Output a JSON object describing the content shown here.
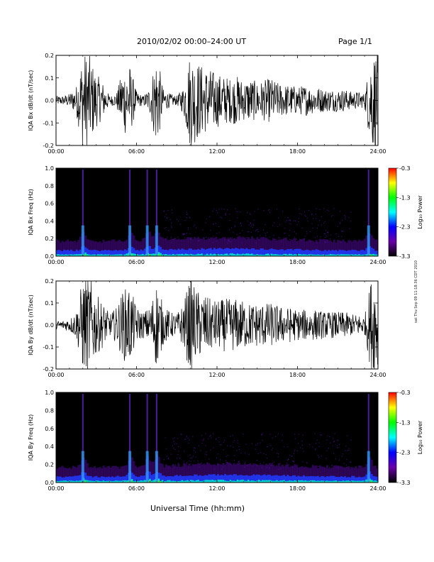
{
  "header": {
    "title": "2010/02/02  00:00–24:00 UT",
    "page": "Page 1/1"
  },
  "footer": {
    "xlabel": "Universal Time (hh:mm)"
  },
  "side_stamp": "sat Thu Sep 09 11:18:36 CDT 2010",
  "colorbar": {
    "label": "Log₁₀ Power",
    "ticks": [
      "-0.3",
      "-1.3",
      "-2.3",
      "-3.3"
    ],
    "colors": [
      "#ff0000",
      "#ffff00",
      "#00ff00",
      "#00ffff",
      "#0000ff",
      "#6a00a8",
      "#000000"
    ]
  },
  "chart_data": [
    {
      "type": "line",
      "ylabel": "IQA Bx dB/dt (nT/sec)",
      "xlim": [
        0,
        24
      ],
      "ylim": [
        -0.2,
        0.2
      ],
      "xticks": [
        "00:00",
        "06:00",
        "12:00",
        "18:00",
        "24:00"
      ],
      "yticks": [
        "0.2",
        "0.1",
        "0.0",
        "-0.1",
        "-0.2"
      ],
      "series": [
        {
          "x": [
            0,
            0.5,
            1,
            1.5,
            2,
            2.5,
            3,
            3.5,
            4,
            4.5,
            5,
            5.5,
            6,
            6.5,
            7,
            7.5,
            8,
            8.5,
            9,
            9.5,
            10,
            10.5,
            11,
            11.5,
            12,
            12.5,
            13,
            13.5,
            14,
            14.5,
            15,
            15.5,
            16,
            16.5,
            17,
            17.5,
            18,
            18.5,
            19,
            19.5,
            20,
            20.5,
            21,
            21.5,
            22,
            22.5,
            23,
            23.5,
            24
          ],
          "envelope": [
            0.02,
            0.02,
            0.03,
            0.06,
            0.22,
            0.2,
            0.12,
            0.08,
            0.02,
            0.03,
            0.15,
            0.16,
            0.04,
            0.02,
            0.06,
            0.22,
            0.05,
            0.03,
            0.02,
            0.06,
            0.22,
            0.18,
            0.15,
            0.14,
            0.12,
            0.11,
            0.1,
            0.11,
            0.09,
            0.1,
            0.08,
            0.09,
            0.1,
            0.08,
            0.07,
            0.07,
            0.06,
            0.07,
            0.06,
            0.06,
            0.05,
            0.05,
            0.05,
            0.05,
            0.04,
            0.04,
            0.03,
            0.22,
            0.22
          ]
        }
      ]
    },
    {
      "type": "heatmap",
      "ylabel": "IQA Bx Freq (Hz)",
      "xlim": [
        0,
        24
      ],
      "ylim": [
        0,
        1
      ],
      "xticks": [
        "00:00",
        "06:00",
        "12:00",
        "18:00",
        "24:00"
      ],
      "yticks": [
        "1.0",
        "0.8",
        "0.6",
        "0.4",
        "0.2",
        "0.0"
      ],
      "zlim": [
        -3.3,
        -0.3
      ],
      "bursts": [
        2,
        5.5,
        6.8,
        7.5,
        23.3
      ]
    },
    {
      "type": "line",
      "ylabel": "IQA By dB/dt (nT/sec)",
      "xlim": [
        0,
        24
      ],
      "ylim": [
        -0.2,
        0.2
      ],
      "xticks": [
        "00:00",
        "06:00",
        "12:00",
        "18:00",
        "24:00"
      ],
      "yticks": [
        "0.2",
        "0.1",
        "0.0",
        "-0.1",
        "-0.2"
      ],
      "series": [
        {
          "x": [
            0,
            0.5,
            1,
            1.5,
            2,
            2.5,
            3,
            3.5,
            4,
            4.5,
            5,
            5.5,
            6,
            6.5,
            7,
            7.5,
            8,
            8.5,
            9,
            9.5,
            10,
            10.5,
            11,
            11.5,
            12,
            12.5,
            13,
            13.5,
            14,
            14.5,
            15,
            15.5,
            16,
            16.5,
            17,
            17.5,
            18,
            18.5,
            19,
            19.5,
            20,
            20.5,
            21,
            21.5,
            22,
            22.5,
            23,
            23.5,
            24
          ],
          "envelope": [
            0.02,
            0.02,
            0.03,
            0.06,
            0.22,
            0.22,
            0.14,
            0.1,
            0.05,
            0.08,
            0.16,
            0.18,
            0.08,
            0.06,
            0.08,
            0.2,
            0.09,
            0.06,
            0.05,
            0.1,
            0.22,
            0.16,
            0.14,
            0.12,
            0.11,
            0.12,
            0.12,
            0.12,
            0.11,
            0.1,
            0.1,
            0.1,
            0.1,
            0.09,
            0.08,
            0.08,
            0.07,
            0.07,
            0.07,
            0.07,
            0.06,
            0.06,
            0.06,
            0.06,
            0.05,
            0.05,
            0.04,
            0.22,
            0.22
          ]
        }
      ]
    },
    {
      "type": "heatmap",
      "ylabel": "IQA By Freq (Hz)",
      "xlim": [
        0,
        24
      ],
      "ylim": [
        0,
        1
      ],
      "xticks": [
        "00:00",
        "06:00",
        "12:00",
        "18:00",
        "24:00"
      ],
      "yticks": [
        "1.0",
        "0.8",
        "0.6",
        "0.4",
        "0.2",
        "0.0"
      ],
      "zlim": [
        -3.3,
        -0.3
      ],
      "bursts": [
        2,
        5.5,
        6.8,
        7.5,
        23.3
      ]
    }
  ]
}
